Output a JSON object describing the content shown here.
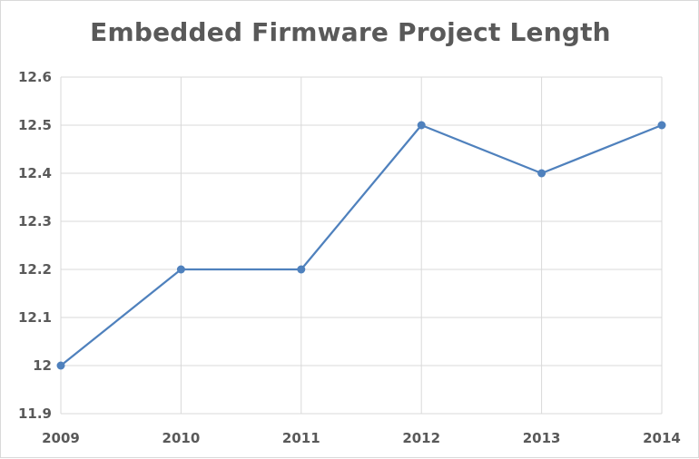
{
  "chart_data": {
    "type": "line",
    "title": "Embedded Firmware Project Length",
    "x": [
      "2009",
      "2010",
      "2011",
      "2012",
      "2013",
      "2014"
    ],
    "series": [
      {
        "values": [
          12.0,
          12.2,
          12.2,
          12.5,
          12.4,
          12.5
        ]
      }
    ],
    "ylim": [
      11.9,
      12.6
    ],
    "y_ticks": [
      11.9,
      12,
      12.1,
      12.2,
      12.3,
      12.4,
      12.5,
      12.6
    ],
    "y_tick_labels": [
      "11.9",
      "12",
      "12.1",
      "12.2",
      "12.3",
      "12.4",
      "12.5",
      "12.6"
    ],
    "grid": true,
    "line_color": "#4f81bd",
    "grid_color": "#d9d9d9"
  }
}
